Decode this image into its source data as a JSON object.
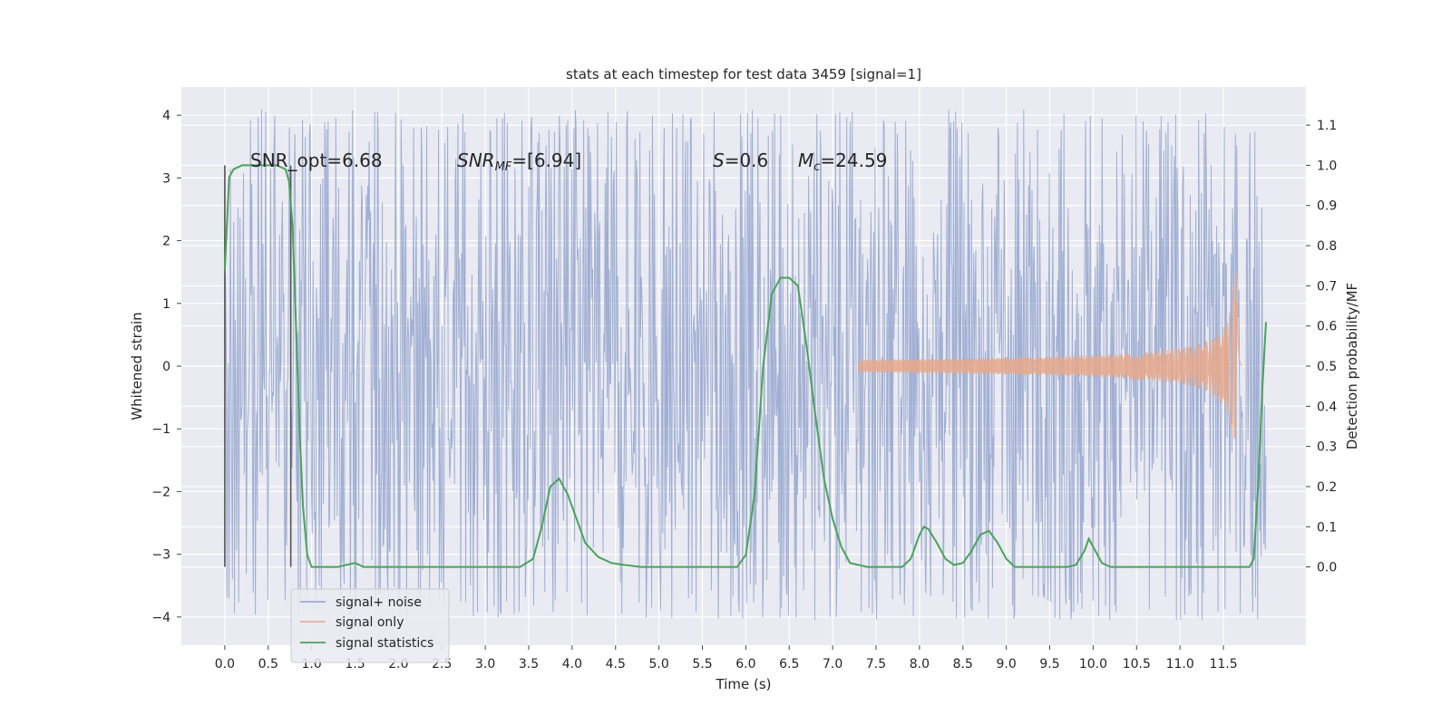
{
  "chart_data": {
    "type": "line",
    "title": "stats at each timestep for test data 3459 [signal=1]",
    "xlabel": "Time (s)",
    "ylabel": "Whitened strain",
    "y2label": "Detection probability/MF",
    "xlim": [
      -0.5,
      12.45
    ],
    "ylim": [
      -4.45,
      4.45
    ],
    "y2lim": [
      -0.195,
      1.195
    ],
    "xticks": [
      "0.0",
      "0.5",
      "1.0",
      "1.5",
      "2.0",
      "2.5",
      "3.0",
      "3.5",
      "4.0",
      "4.5",
      "5.0",
      "5.5",
      "6.0",
      "6.5",
      "7.0",
      "7.5",
      "8.0",
      "8.5",
      "9.0",
      "9.5",
      "10.0",
      "10.5",
      "11.0",
      "11.5"
    ],
    "yticks": [
      "4",
      "3",
      "2",
      "1",
      "0",
      "−1",
      "−2",
      "−3",
      "−4"
    ],
    "y2ticks": [
      "1.1",
      "1.0",
      "0.9",
      "0.8",
      "0.7",
      "0.6",
      "0.5",
      "0.4",
      "0.3",
      "0.2",
      "0.1",
      "0.0"
    ],
    "grid": true,
    "legend_position": "lower-left",
    "legend": [
      {
        "label": "signal+ noise",
        "color": "#8da0cb"
      },
      {
        "label": "signal only",
        "color": "#e8a88a"
      },
      {
        "label": "signal statistics",
        "color": "#4aa35a"
      }
    ],
    "annotations": {
      "snr_opt": "SNR_opt=6.68",
      "snr_mf_main": "SNR",
      "snr_mf_sub": "MF",
      "snr_mf_value": "=[6.94]",
      "s_symbol": "S",
      "s_value": "=0.6",
      "mc_symbol": "M",
      "mc_sub": "c",
      "mc_value": "=24.59"
    },
    "window_markers_x": [
      0.0,
      0.76
    ],
    "signal_noise": {
      "t_start": 0.0,
      "t_end": 11.99,
      "typical_amplitude": 1.3,
      "peak_max": 4.1,
      "peak_min": -4.05
    },
    "signal_only": {
      "t_start": 7.3,
      "t_peak": 11.66,
      "t_end": 11.72,
      "peak_amplitude": 1.5
    },
    "signal_statistics": {
      "x": [
        0.0,
        0.05,
        0.1,
        0.2,
        0.3,
        0.4,
        0.5,
        0.6,
        0.7,
        0.74,
        0.78,
        0.82,
        0.86,
        0.9,
        0.95,
        1.0,
        1.1,
        1.2,
        1.3,
        1.4,
        1.5,
        1.6,
        1.8,
        2.0,
        2.2,
        2.4,
        2.6,
        2.8,
        3.0,
        3.2,
        3.4,
        3.55,
        3.65,
        3.75,
        3.85,
        3.95,
        4.05,
        4.15,
        4.3,
        4.45,
        4.6,
        4.8,
        5.0,
        5.5,
        5.9,
        6.0,
        6.1,
        6.2,
        6.3,
        6.4,
        6.5,
        6.6,
        6.7,
        6.8,
        6.9,
        7.0,
        7.1,
        7.2,
        7.4,
        7.6,
        7.7,
        7.8,
        7.9,
        8.0,
        8.05,
        8.1,
        8.2,
        8.3,
        8.4,
        8.5,
        8.6,
        8.7,
        8.8,
        8.9,
        9.0,
        9.1,
        9.3,
        9.5,
        9.7,
        9.8,
        9.9,
        9.95,
        10.0,
        10.1,
        10.2,
        10.4,
        11.0,
        11.5,
        11.6,
        11.7,
        11.8,
        11.85,
        11.9,
        11.95,
        11.99
      ],
      "y": [
        0.74,
        0.97,
        0.99,
        1.0,
        1.0,
        1.0,
        1.0,
        1.0,
        0.99,
        0.96,
        0.85,
        0.6,
        0.35,
        0.15,
        0.03,
        0.0,
        0.0,
        0.0,
        0.0,
        0.005,
        0.01,
        0.0,
        0.0,
        0.0,
        0.0,
        0.0,
        0.0,
        0.0,
        0.0,
        0.0,
        0.0,
        0.02,
        0.1,
        0.2,
        0.22,
        0.18,
        0.12,
        0.06,
        0.025,
        0.01,
        0.005,
        0.0,
        0.0,
        0.0,
        0.0,
        0.03,
        0.18,
        0.5,
        0.68,
        0.72,
        0.72,
        0.7,
        0.55,
        0.38,
        0.22,
        0.12,
        0.05,
        0.01,
        0.0,
        0.0,
        0.0,
        0.0,
        0.02,
        0.08,
        0.1,
        0.095,
        0.06,
        0.02,
        0.005,
        0.01,
        0.04,
        0.08,
        0.09,
        0.06,
        0.02,
        0.0,
        0.0,
        0.0,
        0.0,
        0.005,
        0.04,
        0.07,
        0.05,
        0.01,
        0.0,
        0.0,
        0.0,
        0.0,
        0.0,
        0.0,
        0.0,
        0.02,
        0.2,
        0.45,
        0.61
      ]
    }
  }
}
